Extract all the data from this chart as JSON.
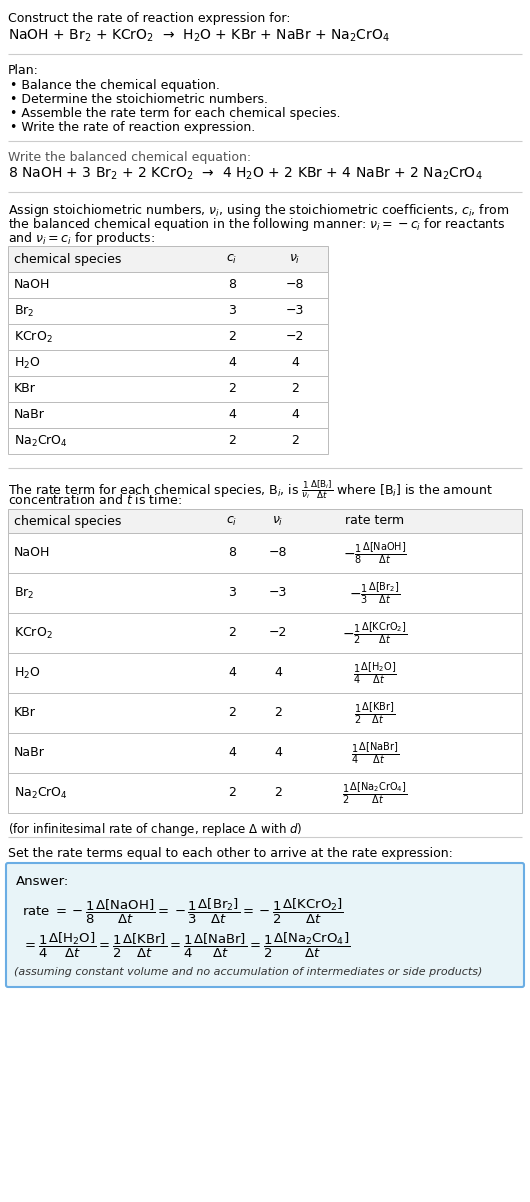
{
  "title_line1": "Construct the rate of reaction expression for:",
  "reaction_unbalanced": "NaOH + Br$_2$ + KCrO$_2$  →  H$_2$O + KBr + NaBr + Na$_2$CrO$_4$",
  "plan_header": "Plan:",
  "plan_items": [
    "• Balance the chemical equation.",
    "• Determine the stoichiometric numbers.",
    "• Assemble the rate term for each chemical species.",
    "• Write the rate of reaction expression."
  ],
  "balanced_header": "Write the balanced chemical equation:",
  "reaction_balanced": "8 NaOH + 3 Br$_2$ + 2 KCrO$_2$  →  4 H$_2$O + 2 KBr + 4 NaBr + 2 Na$_2$CrO$_4$",
  "table1_headers": [
    "chemical species",
    "$c_i$",
    "$\\nu_i$"
  ],
  "table1_data": [
    [
      "NaOH",
      "8",
      "−8"
    ],
    [
      "Br$_2$",
      "3",
      "−3"
    ],
    [
      "KCrO$_2$",
      "2",
      "−2"
    ],
    [
      "H$_2$O",
      "4",
      "4"
    ],
    [
      "KBr",
      "2",
      "2"
    ],
    [
      "NaBr",
      "4",
      "4"
    ],
    [
      "Na$_2$CrO$_4$",
      "2",
      "2"
    ]
  ],
  "table2_headers": [
    "chemical species",
    "$c_i$",
    "$\\nu_i$",
    "rate term"
  ],
  "table2_data": [
    [
      "NaOH",
      "8",
      "−8",
      "$-\\frac{1}{8}\\frac{\\Delta[\\mathrm{NaOH}]}{\\Delta t}$"
    ],
    [
      "Br$_2$",
      "3",
      "−3",
      "$-\\frac{1}{3}\\frac{\\Delta[\\mathrm{Br}_2]}{\\Delta t}$"
    ],
    [
      "KCrO$_2$",
      "2",
      "−2",
      "$-\\frac{1}{2}\\frac{\\Delta[\\mathrm{KCrO}_2]}{\\Delta t}$"
    ],
    [
      "H$_2$O",
      "4",
      "4",
      "$\\frac{1}{4}\\frac{\\Delta[\\mathrm{H_2O}]}{\\Delta t}$"
    ],
    [
      "KBr",
      "2",
      "2",
      "$\\frac{1}{2}\\frac{\\Delta[\\mathrm{KBr}]}{\\Delta t}$"
    ],
    [
      "NaBr",
      "4",
      "4",
      "$\\frac{1}{4}\\frac{\\Delta[\\mathrm{NaBr}]}{\\Delta t}$"
    ],
    [
      "Na$_2$CrO$_4$",
      "2",
      "2",
      "$\\frac{1}{2}\\frac{\\Delta[\\mathrm{Na_2CrO_4}]}{\\Delta t}$"
    ]
  ],
  "infinitesimal_note": "(for infinitesimal rate of change, replace Δ with $d$)",
  "set_rate_text": "Set the rate terms equal to each other to arrive at the rate expression:",
  "answer_label": "Answer:",
  "answer_box_color": "#e8f4f8",
  "answer_box_border": "#6aade4",
  "answer_line1": "rate $= -\\dfrac{1}{8}\\dfrac{\\Delta[\\mathrm{NaOH}]}{\\Delta t} = -\\dfrac{1}{3}\\dfrac{\\Delta[\\mathrm{Br}_2]}{\\Delta t} = -\\dfrac{1}{2}\\dfrac{\\Delta[\\mathrm{KCrO}_2]}{\\Delta t}$",
  "answer_line2": "$= \\dfrac{1}{4}\\dfrac{\\Delta[\\mathrm{H_2O}]}{\\Delta t} = \\dfrac{1}{2}\\dfrac{\\Delta[\\mathrm{KBr}]}{\\Delta t} = \\dfrac{1}{4}\\dfrac{\\Delta[\\mathrm{NaBr}]}{\\Delta t} = \\dfrac{1}{2}\\dfrac{\\Delta[\\mathrm{Na_2CrO_4}]}{\\Delta t}$",
  "answer_footnote": "(assuming constant volume and no accumulation of intermediates or side products)",
  "bg_color": "#ffffff",
  "text_color": "#000000",
  "gray_text": "#555555",
  "table_line_color": "#bbbbbb",
  "sep_color": "#cccccc"
}
